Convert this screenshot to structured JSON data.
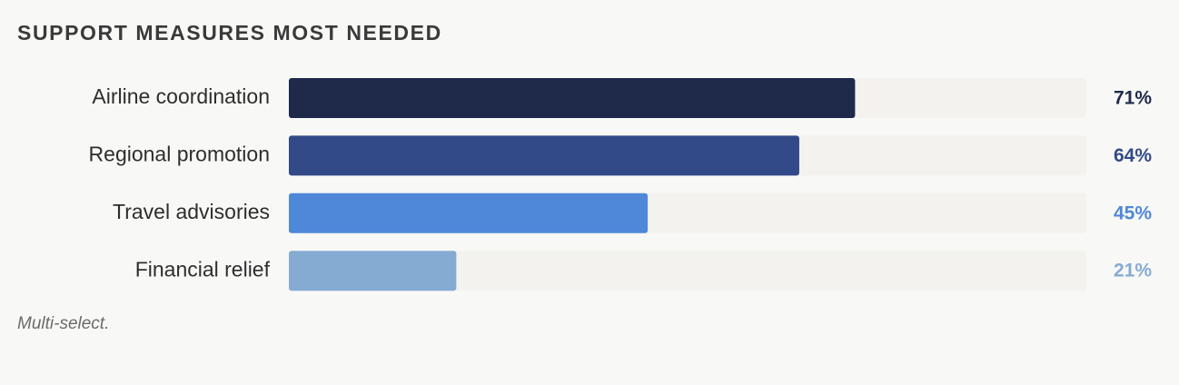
{
  "chart_data": {
    "type": "bar",
    "orientation": "horizontal",
    "title": "SUPPORT MEASURES MOST NEEDED",
    "categories": [
      "Airline coordination",
      "Regional promotion",
      "Travel advisories",
      "Financial relief"
    ],
    "values": [
      71,
      64,
      45,
      21
    ],
    "value_labels": [
      "71%",
      "64%",
      "45%",
      "21%"
    ],
    "colors": [
      "#1f2a4a",
      "#334a88",
      "#4f88d8",
      "#86abd3"
    ],
    "xlim": [
      0,
      100
    ],
    "note": "Multi-select."
  }
}
